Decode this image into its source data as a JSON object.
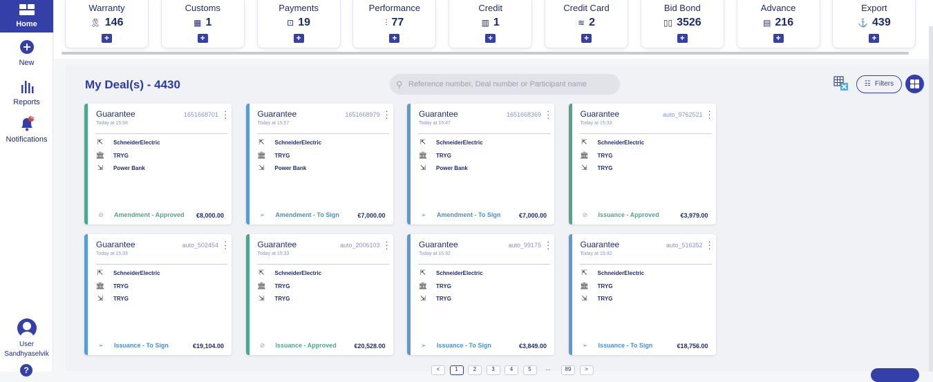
{
  "sidebar": {
    "home": "Home",
    "new": "New",
    "reports": "Reports",
    "notifications": "Notifications",
    "notification_count": "45",
    "user_label": "User",
    "user_name": "Sandhyaselvik",
    "help": "?"
  },
  "products": [
    {
      "name": "Warranty",
      "count": "146",
      "icon": "ribbon-icon",
      "glyph": "🎗"
    },
    {
      "name": "Customs",
      "count": "1",
      "icon": "building-icon",
      "glyph": "▦"
    },
    {
      "name": "Payments",
      "count": "19",
      "icon": "wallet-icon",
      "glyph": "⊡"
    },
    {
      "name": "Performance",
      "count": "77",
      "icon": "chart-up-icon",
      "glyph": "⫶"
    },
    {
      "name": "Credit",
      "count": "1",
      "icon": "store-icon",
      "glyph": "▥"
    },
    {
      "name": "Credit Card",
      "count": "2",
      "icon": "card-icon",
      "glyph": "≋"
    },
    {
      "name": "Bid Bond",
      "count": "3526",
      "icon": "book-icon",
      "glyph": "▯▯"
    },
    {
      "name": "Advance",
      "count": "216",
      "icon": "calculator-icon",
      "glyph": "▤"
    },
    {
      "name": "Export",
      "count": "439",
      "icon": "ship-icon",
      "glyph": "⚓"
    }
  ],
  "product_add": "+",
  "main": {
    "title": "My Deal(s) - 4430",
    "search_placeholder": "Reference number, Deal number or Participant name",
    "filters": "Filters"
  },
  "deals": [
    {
      "type": "Guarantee",
      "ref": "1651668701",
      "time": "Today at 15:58",
      "parties": [
        "SchneiderElectric",
        "TRYG",
        "Power Bank"
      ],
      "status": "Amendment - Approved",
      "amount": "€8,000.00",
      "state": "approved"
    },
    {
      "type": "Guarantee",
      "ref": "1651668979",
      "time": "Today at 15:57",
      "parties": [
        "SchneiderElectric",
        "TRYG",
        "Power Bank"
      ],
      "status": "Amendment - To Sign",
      "amount": "€7,000.00",
      "state": "sign"
    },
    {
      "type": "Guarantee",
      "ref": "1651668369",
      "time": "Today at 15:47",
      "parties": [
        "SchneiderElectric",
        "TRYG",
        "Power Bank"
      ],
      "status": "Amendment - To Sign",
      "amount": "€7,000.00",
      "state": "sign"
    },
    {
      "type": "Guarantee",
      "ref": "auto_9762521",
      "time": "Today at 15:33",
      "parties": [
        "SchneiderElectric",
        "TRYG",
        "TRYG"
      ],
      "status": "Issuance - Approved",
      "amount": "€3,979.00",
      "state": "approved"
    },
    {
      "type": "Guarantee",
      "ref": "auto_502454",
      "time": "Today at 15:33",
      "parties": [
        "SchneiderElectric",
        "TRYG",
        "TRYG"
      ],
      "status": "Issuance - To Sign",
      "amount": "€19,104.00",
      "state": "sign"
    },
    {
      "type": "Guarantee",
      "ref": "auto_2006103",
      "time": "Today at 15:33",
      "parties": [
        "SchneiderElectric",
        "TRYG",
        "TRYG"
      ],
      "status": "Issuance - Approved",
      "amount": "€20,528.00",
      "state": "approved"
    },
    {
      "type": "Guarantee",
      "ref": "auto_99175",
      "time": "Today at 15:32",
      "parties": [
        "SchneiderElectric",
        "TRYG",
        "TRYG"
      ],
      "status": "Issuance - To Sign",
      "amount": "€3,849.00",
      "state": "sign"
    },
    {
      "type": "Guarantee",
      "ref": "auto_516352",
      "time": "Today at 15:32",
      "parties": [
        "SchneiderElectric",
        "TRYG",
        "TRYG"
      ],
      "status": "Issuance - To Sign",
      "amount": "€18,756.00",
      "state": "sign"
    }
  ],
  "pagination": [
    "<",
    "1",
    "2",
    "3",
    "4",
    "5",
    "...",
    "89",
    ">"
  ],
  "colors": {
    "brand": "#3440a8",
    "approved": "#4ea78c",
    "sign": "#5a9bd4"
  }
}
